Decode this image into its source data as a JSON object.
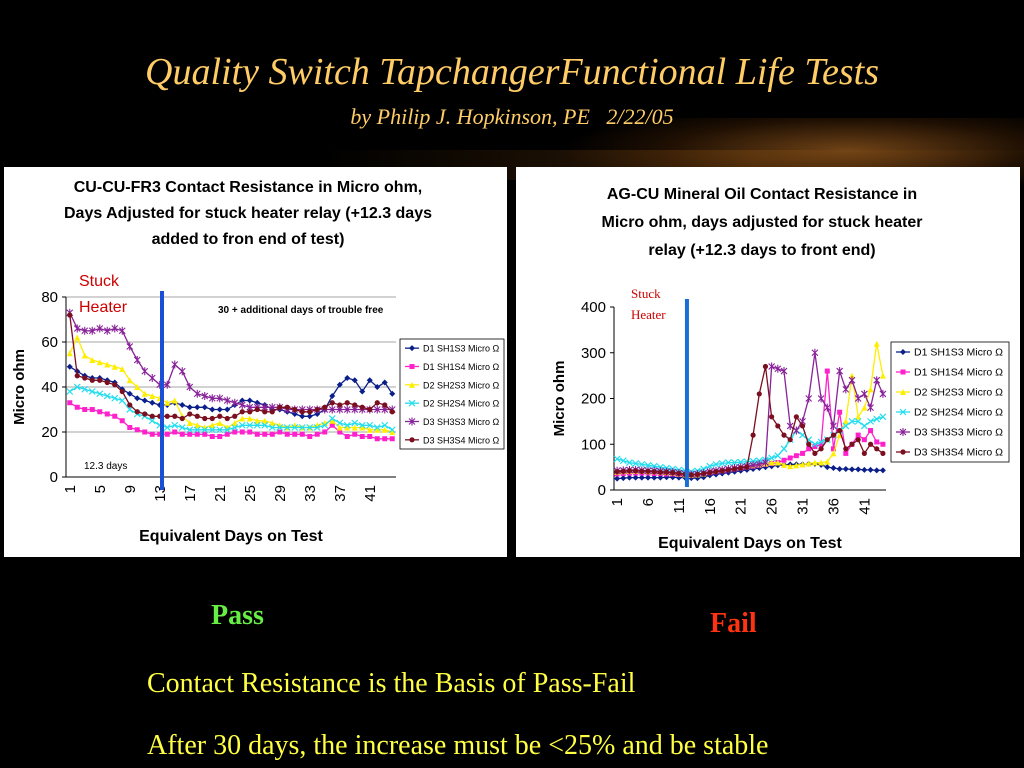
{
  "slide": {
    "title": "Quality Switch TapchangerFunctional Life Tests",
    "subtitle": "by Philip J. Hopkinson, PE   2/22/05",
    "pass_label": "Pass",
    "fail_label": "Fail",
    "line1": "Contact Resistance is the Basis of Pass-Fail",
    "line2": "After 30 days, the increase must be <25% and be stable",
    "colors": {
      "title": "#ffcc66",
      "pass": "#66ee44",
      "fail": "#ff3311",
      "body": "#ffff44"
    }
  },
  "chart_data": [
    {
      "type": "line",
      "title_lines": [
        "CU-CU-FR3 Contact Resistance in Micro ohm,",
        "Days Adjusted for stuck heater relay (+12.3 days",
        "added to fron end of test)"
      ],
      "xlabel": "Equivalent Days on Test",
      "ylabel": "Micro ohm",
      "ylim": [
        0,
        80
      ],
      "yticks": [
        0,
        20,
        40,
        60,
        80
      ],
      "x": [
        1,
        2,
        3,
        4,
        5,
        6,
        7,
        8,
        9,
        10,
        11,
        12,
        13,
        14,
        15,
        16,
        17,
        18,
        19,
        20,
        21,
        22,
        23,
        24,
        25,
        26,
        27,
        28,
        29,
        30,
        31,
        32,
        33,
        34,
        35,
        36,
        37,
        38,
        39,
        40,
        41,
        42,
        43,
        44
      ],
      "xtick_labels": [
        "1",
        "5",
        "9",
        "13",
        "17",
        "21",
        "25",
        "29",
        "33",
        "37",
        "41"
      ],
      "grid": true,
      "legend_position": "right",
      "annotations": [
        {
          "text": "Stuck Heater",
          "x": 13,
          "color": "#cc0000"
        },
        {
          "text": "30 + additional days of trouble free",
          "x": 30
        },
        {
          "text": "12.3 days",
          "x": 6
        }
      ],
      "marker_line": {
        "x": 13.3,
        "color": "#1a4fd6"
      },
      "series": [
        {
          "name": "D1 SH1S3 Micro Ω",
          "color": "#0a1f8a",
          "marker": "diamond",
          "values": [
            49,
            47,
            45,
            44,
            44,
            43,
            42,
            39,
            37,
            35,
            34,
            33,
            32,
            32,
            33,
            32,
            31,
            31,
            31,
            30,
            30,
            30,
            32,
            34,
            34,
            33,
            32,
            30,
            30,
            29,
            28,
            27,
            27,
            28,
            30,
            36,
            41,
            44,
            43,
            38,
            43,
            40,
            42,
            37
          ]
        },
        {
          "name": "D1 SH1S4 Micro Ω",
          "color": "#ff22cc",
          "marker": "square",
          "values": [
            33,
            31,
            30,
            30,
            29,
            28,
            27,
            25,
            22,
            21,
            20,
            19,
            19,
            19,
            20,
            19,
            19,
            19,
            19,
            18,
            18,
            19,
            20,
            20,
            20,
            19,
            19,
            19,
            20,
            19,
            19,
            19,
            18,
            19,
            20,
            23,
            20,
            18,
            19,
            18,
            18,
            17,
            17,
            17
          ]
        },
        {
          "name": "D2 SH2S3 Micro Ω",
          "color": "#ffee00",
          "marker": "triangle",
          "values": [
            55,
            62,
            54,
            52,
            51,
            50,
            49,
            48,
            43,
            40,
            37,
            36,
            35,
            33,
            34,
            27,
            24,
            23,
            22,
            23,
            24,
            22,
            24,
            26,
            26,
            25,
            25,
            24,
            23,
            22,
            23,
            22,
            22,
            23,
            24,
            25,
            22,
            22,
            22,
            22,
            21,
            21,
            21,
            20
          ]
        },
        {
          "name": "D2 SH2S4 Micro Ω",
          "color": "#22ddee",
          "marker": "x",
          "values": [
            38,
            40,
            39,
            38,
            37,
            36,
            35,
            34,
            30,
            28,
            27,
            25,
            23,
            22,
            23,
            22,
            21,
            21,
            21,
            21,
            21,
            21,
            22,
            23,
            23,
            23,
            23,
            22,
            22,
            22,
            22,
            22,
            22,
            22,
            23,
            26,
            24,
            23,
            24,
            23,
            23,
            22,
            23,
            21
          ]
        },
        {
          "name": "D3 SH3S3 Micro Ω",
          "color": "#882299",
          "marker": "star",
          "values": [
            73,
            66,
            65,
            65,
            66,
            65,
            66,
            65,
            58,
            52,
            47,
            44,
            41,
            41,
            50,
            47,
            40,
            37,
            36,
            35,
            35,
            34,
            33,
            32,
            31,
            31,
            31,
            31,
            31,
            30,
            30,
            30,
            30,
            30,
            30,
            30,
            30,
            30,
            30,
            30,
            30,
            30,
            30,
            30
          ]
        },
        {
          "name": "D3 SH3S4 Micro Ω",
          "color": "#7a0f1f",
          "marker": "circle",
          "values": [
            72,
            45,
            44,
            43,
            43,
            42,
            41,
            38,
            32,
            29,
            28,
            27,
            27,
            27,
            27,
            26,
            28,
            27,
            26,
            26,
            27,
            26,
            27,
            29,
            29,
            30,
            29,
            29,
            31,
            31,
            30,
            29,
            29,
            30,
            31,
            33,
            32,
            33,
            32,
            31,
            30,
            33,
            32,
            29
          ]
        }
      ]
    },
    {
      "type": "line",
      "title_lines": [
        "AG-CU Mineral Oil Contact Resistance in",
        "Micro ohm, days adjusted for stuck heater",
        "relay (+12.3 days to front end)"
      ],
      "xlabel": "Equivalent Days on Test",
      "ylabel": "Micro ohm",
      "ylim": [
        0,
        400
      ],
      "yticks": [
        0,
        100,
        200,
        300,
        400
      ],
      "x": [
        1,
        2,
        3,
        4,
        5,
        6,
        7,
        8,
        9,
        10,
        11,
        12,
        13,
        14,
        15,
        16,
        17,
        18,
        19,
        20,
        21,
        22,
        23,
        24,
        25,
        26,
        27,
        28,
        29,
        30,
        31,
        32,
        33,
        34,
        35,
        36,
        37,
        38,
        39,
        40,
        41,
        42,
        43,
        44
      ],
      "xtick_labels": [
        "1",
        "6",
        "11",
        "16",
        "21",
        "26",
        "31",
        "36",
        "41"
      ],
      "grid": false,
      "legend_position": "right",
      "annotations": [
        {
          "text": "Stuck Heater",
          "x": 12,
          "color": "#cc0000"
        }
      ],
      "marker_line": {
        "x": 12.3,
        "color": "#1a6fd6"
      },
      "series": [
        {
          "name": "D1 SH1S3 Micro Ω",
          "color": "#0a1f8a",
          "marker": "diamond",
          "values": [
            25,
            26,
            27,
            27,
            27,
            27,
            27,
            27,
            28,
            28,
            27,
            27,
            26,
            26,
            28,
            32,
            34,
            36,
            38,
            40,
            42,
            44,
            46,
            48,
            50,
            52,
            54,
            55,
            56,
            56,
            56,
            57,
            57,
            55,
            50,
            48,
            46,
            46,
            45,
            45,
            44,
            44,
            43,
            43
          ]
        },
        {
          "name": "D1 SH1S4 Micro Ω",
          "color": "#ff22cc",
          "marker": "square",
          "values": [
            35,
            36,
            37,
            37,
            37,
            37,
            36,
            36,
            35,
            35,
            34,
            33,
            32,
            33,
            35,
            38,
            40,
            42,
            44,
            46,
            48,
            50,
            52,
            54,
            56,
            58,
            60,
            65,
            70,
            75,
            80,
            90,
            95,
            100,
            260,
            90,
            170,
            80,
            100,
            120,
            110,
            130,
            105,
            100
          ]
        },
        {
          "name": "D2 SH2S3 Micro Ω",
          "color": "#ffee00",
          "marker": "triangle",
          "values": [
            40,
            41,
            42,
            42,
            42,
            41,
            41,
            40,
            39,
            38,
            36,
            34,
            33,
            34,
            36,
            40,
            42,
            44,
            46,
            48,
            50,
            52,
            54,
            56,
            58,
            60,
            60,
            55,
            52,
            54,
            56,
            58,
            60,
            60,
            62,
            80,
            120,
            150,
            250,
            160,
            180,
            220,
            320,
            250
          ]
        },
        {
          "name": "D2 SH2S4 Micro Ω",
          "color": "#22ddee",
          "marker": "x",
          "values": [
            68,
            64,
            60,
            58,
            56,
            54,
            52,
            50,
            48,
            46,
            44,
            42,
            40,
            42,
            46,
            52,
            56,
            58,
            60,
            60,
            61,
            62,
            63,
            64,
            66,
            70,
            75,
            90,
            110,
            130,
            120,
            110,
            100,
            105,
            110,
            120,
            130,
            140,
            150,
            150,
            140,
            150,
            155,
            160
          ]
        },
        {
          "name": "D3 SH3S3 Micro Ω",
          "color": "#882299",
          "marker": "star",
          "values": [
            42,
            43,
            44,
            44,
            43,
            42,
            42,
            41,
            40,
            39,
            37,
            35,
            34,
            35,
            37,
            40,
            42,
            44,
            46,
            48,
            50,
            52,
            54,
            56,
            60,
            270,
            265,
            260,
            140,
            130,
            150,
            200,
            300,
            200,
            180,
            140,
            260,
            220,
            240,
            200,
            210,
            180,
            240,
            210
          ]
        },
        {
          "name": "D3 SH3S4 Micro Ω",
          "color": "#7a0f1f",
          "marker": "circle",
          "values": [
            40,
            41,
            42,
            42,
            41,
            41,
            40,
            39,
            39,
            38,
            36,
            34,
            33,
            34,
            36,
            38,
            40,
            42,
            44,
            46,
            48,
            50,
            120,
            210,
            270,
            160,
            140,
            120,
            110,
            160,
            140,
            100,
            80,
            90,
            110,
            120,
            130,
            90,
            100,
            110,
            80,
            100,
            90,
            80
          ]
        }
      ]
    }
  ]
}
